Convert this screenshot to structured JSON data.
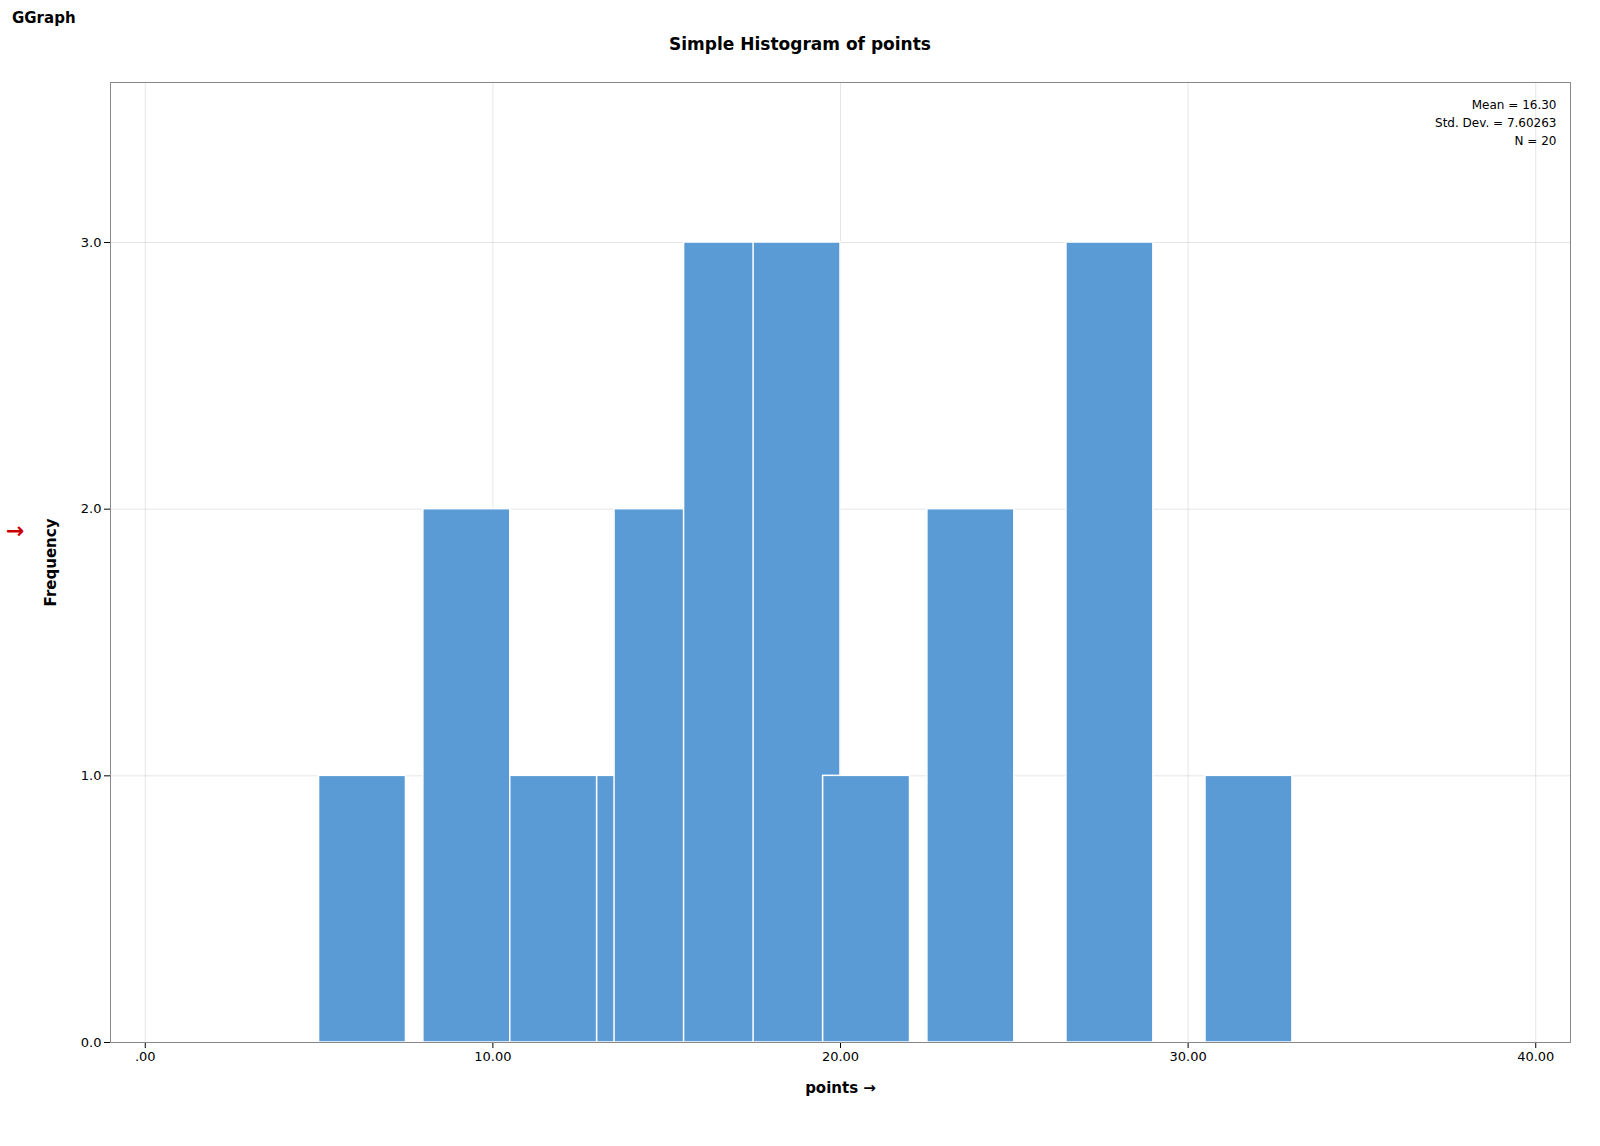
{
  "chart_data": {
    "type": "histogram",
    "title": "Simple Histogram of points",
    "header": "GGraph",
    "xlabel": "points",
    "ylabel": "Frequency",
    "annotation": "Mean = 16.30\nStd. Dev. = 7.60263\nN = 20",
    "arrow": {
      "text": "→",
      "color": "#cc0000"
    },
    "color": "#5b9bd5",
    "x": [
      5.0,
      8.0,
      10.5,
      13.0,
      13.5,
      15.5,
      17.5,
      19.5,
      22.5,
      26.5,
      30.5
    ],
    "widths": [
      2.5,
      2.5,
      2.5,
      2.5,
      2.5,
      2.5,
      2.5,
      2.5,
      2.5,
      2.5,
      2.5
    ],
    "values": [
      1,
      2,
      1,
      1,
      2,
      3,
      3,
      1,
      2,
      3,
      1
    ],
    "xlim": [
      -1,
      41
    ],
    "xticks": [
      {
        "value": 0,
        "label": ".00"
      },
      {
        "value": 10,
        "label": "10.00"
      },
      {
        "value": 20,
        "label": "20.00"
      },
      {
        "value": 30,
        "label": "30.00"
      },
      {
        "value": 40,
        "label": "40.00"
      }
    ],
    "ylim": [
      0,
      3.6
    ],
    "yticks": [
      {
        "value": 0,
        "label": "0.0"
      },
      {
        "value": 1,
        "label": "1.0"
      },
      {
        "value": 2,
        "label": "2.0"
      },
      {
        "value": 3,
        "label": "3.0"
      }
    ],
    "grid": true
  }
}
